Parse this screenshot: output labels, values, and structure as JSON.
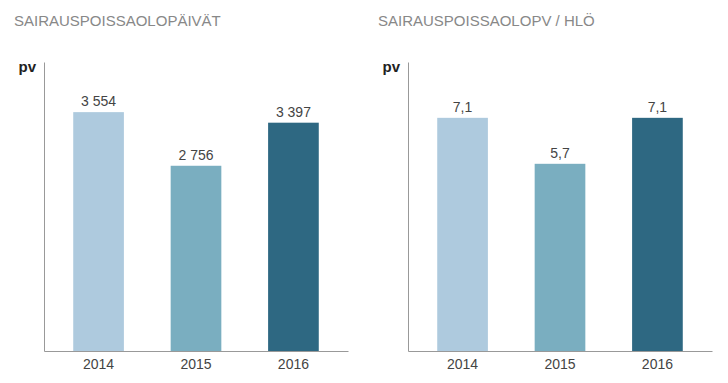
{
  "chart_data": [
    {
      "type": "bar",
      "title": "SAIRAUSPOISSAOLOPÄIVÄT",
      "ylabel": "pv",
      "categories": [
        "2014",
        "2015",
        "2016"
      ],
      "values": [
        3554,
        2756,
        3397
      ],
      "value_labels": [
        "3 554",
        "2 756",
        "3 397"
      ],
      "colors": [
        "#aecade",
        "#7aaec0",
        "#2e6882"
      ],
      "ylim": [
        0,
        4300
      ],
      "data_labels": true,
      "tick_labels": "x",
      "grid": false
    },
    {
      "type": "bar",
      "title": "SAIRAUSPOISSAOLOPV / HLÖ",
      "ylabel": "pv",
      "categories": [
        "2014",
        "2015",
        "2016"
      ],
      "values": [
        7.1,
        5.7,
        7.1
      ],
      "value_labels": [
        "7,1",
        "5,7",
        "7,1"
      ],
      "colors": [
        "#aecade",
        "#7aaec0",
        "#2e6882"
      ],
      "ylim": [
        0,
        8.8
      ],
      "data_labels": true,
      "tick_labels": "x",
      "grid": false
    }
  ]
}
